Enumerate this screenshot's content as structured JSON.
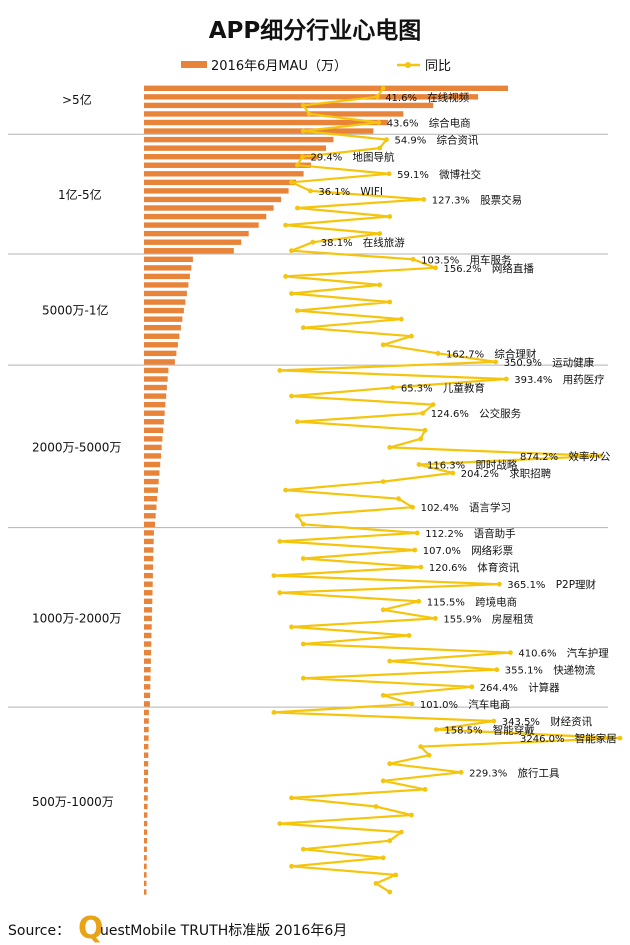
{
  "colors": {
    "bar": "#e8843a",
    "line": "#f5c40d",
    "divider": "#b3b3b3",
    "text": "#111111",
    "logo_q": "#e8a317"
  },
  "chart_data": {
    "type": "bar+line",
    "title": "APP细分行业心电图",
    "legend": [
      {
        "name": "2016年6月MAU（万）",
        "kind": "bar",
        "color": "#e8843a"
      },
      {
        "name": "同比",
        "kind": "line",
        "color": "#f5c40d"
      }
    ],
    "legend_placement": "top",
    "tiers": [
      {
        "label": ">5亿",
        "start": 0,
        "end": 5
      },
      {
        "label": "1亿-5亿",
        "start": 6,
        "end": 19
      },
      {
        "label": "5000万-1亿",
        "start": 20,
        "end": 32
      },
      {
        "label": "2000万-5000万",
        "start": 33,
        "end": 51
      },
      {
        "label": "1000万-2000万",
        "start": 52,
        "end": 72
      },
      {
        "label": "500万-1000万",
        "start": 73,
        "end": 94
      }
    ],
    "mau": [
      73000,
      67000,
      58000,
      52000,
      49000,
      46000,
      38000,
      36500,
      35000,
      33500,
      32000,
      30500,
      29000,
      27500,
      26000,
      24500,
      23000,
      21000,
      19500,
      18000,
      9800,
      9500,
      9200,
      8900,
      8600,
      8300,
      8000,
      7700,
      7400,
      7100,
      6800,
      6500,
      6200,
      4900,
      4750,
      4600,
      4450,
      4300,
      4150,
      4000,
      3850,
      3700,
      3550,
      3400,
      3250,
      3100,
      2950,
      2800,
      2650,
      2500,
      2350,
      2200,
      1980,
      1940,
      1900,
      1860,
      1820,
      1780,
      1740,
      1700,
      1660,
      1620,
      1580,
      1540,
      1500,
      1460,
      1420,
      1380,
      1340,
      1300,
      1260,
      1220,
      1180,
      990,
      965,
      940,
      915,
      890,
      865,
      840,
      815,
      790,
      765,
      740,
      715,
      690,
      665,
      640,
      615,
      590,
      565,
      540,
      520,
      505,
      500
    ],
    "yoy": [
      50,
      41.6,
      30,
      35,
      43.6,
      30,
      54.9,
      45,
      29.4,
      25,
      59.1,
      20,
      36.1,
      127.3,
      25,
      60,
      15,
      45,
      38.1,
      20,
      103.5,
      156.2,
      15,
      45,
      20,
      60,
      25,
      80,
      30,
      100,
      50,
      162.7,
      350.9,
      10,
      393.4,
      65.3,
      20,
      150,
      124.6,
      25,
      130,
      120,
      60,
      874.2,
      116.3,
      204.2,
      50,
      15,
      75,
      102.4,
      25,
      30,
      112.2,
      10,
      107.0,
      30,
      120.6,
      5,
      365.1,
      10,
      115.5,
      50,
      155.9,
      20,
      95,
      30,
      410.6,
      60,
      355.1,
      30,
      264.4,
      50,
      101.0,
      5,
      343.5,
      158.5,
      3246.0,
      120,
      140,
      60,
      229.3,
      50,
      130,
      20,
      40,
      100,
      10,
      80,
      60,
      30,
      50,
      20,
      70,
      40,
      60
    ],
    "annotations": [
      {
        "index": 1,
        "pct": "41.6%",
        "name": "在线视频"
      },
      {
        "index": 4,
        "pct": "43.6%",
        "name": "综合电商"
      },
      {
        "index": 6,
        "pct": "54.9%",
        "name": "综合资讯"
      },
      {
        "index": 8,
        "pct": "29.4%",
        "name": "地图导航"
      },
      {
        "index": 10,
        "pct": "59.1%",
        "name": "微博社交"
      },
      {
        "index": 12,
        "pct": "36.1%",
        "name": "WIFI"
      },
      {
        "index": 13,
        "pct": "127.3%",
        "name": "股票交易"
      },
      {
        "index": 18,
        "pct": "38.1%",
        "name": "在线旅游"
      },
      {
        "index": 20,
        "pct": "103.5%",
        "name": "用车服务"
      },
      {
        "index": 21,
        "pct": "156.2%",
        "name": "网络直播"
      },
      {
        "index": 31,
        "pct": "162.7%",
        "name": "综合理财"
      },
      {
        "index": 32,
        "pct": "350.9%",
        "name": "运动健康"
      },
      {
        "index": 34,
        "pct": "393.4%",
        "name": "用药医疗"
      },
      {
        "index": 35,
        "pct": "65.3%",
        "name": "儿童教育"
      },
      {
        "index": 38,
        "pct": "124.6%",
        "name": "公交服务"
      },
      {
        "index": 43,
        "pct": "874.2%",
        "name": "效率办公"
      },
      {
        "index": 44,
        "pct": "116.3%",
        "name": "即时战略"
      },
      {
        "index": 45,
        "pct": "204.2%",
        "name": "求职招聘"
      },
      {
        "index": 49,
        "pct": "102.4%",
        "name": "语言学习"
      },
      {
        "index": 52,
        "pct": "112.2%",
        "name": "语音助手"
      },
      {
        "index": 54,
        "pct": "107.0%",
        "name": "网络彩票"
      },
      {
        "index": 56,
        "pct": "120.6%",
        "name": "体育资讯"
      },
      {
        "index": 58,
        "pct": "365.1%",
        "name": "P2P理财"
      },
      {
        "index": 60,
        "pct": "115.5%",
        "name": "跨境电商"
      },
      {
        "index": 62,
        "pct": "155.9%",
        "name": "房屋租赁"
      },
      {
        "index": 66,
        "pct": "410.6%",
        "name": "汽车护理"
      },
      {
        "index": 68,
        "pct": "355.1%",
        "name": "快递物流"
      },
      {
        "index": 70,
        "pct": "264.4%",
        "name": "计算器"
      },
      {
        "index": 72,
        "pct": "101.0%",
        "name": "汽车电商"
      },
      {
        "index": 74,
        "pct": "343.5%",
        "name": "财经资讯"
      },
      {
        "index": 75,
        "pct": "158.5%",
        "name": "智能穿戴"
      },
      {
        "index": 76,
        "pct": "3246.0%",
        "name": "智能家居"
      },
      {
        "index": 80,
        "pct": "229.3%",
        "name": "旅行工具"
      }
    ]
  },
  "source": {
    "prefix": "Source：",
    "q": "Q",
    "rest": "uestMobile TRUTH标准版 2016年6月"
  }
}
